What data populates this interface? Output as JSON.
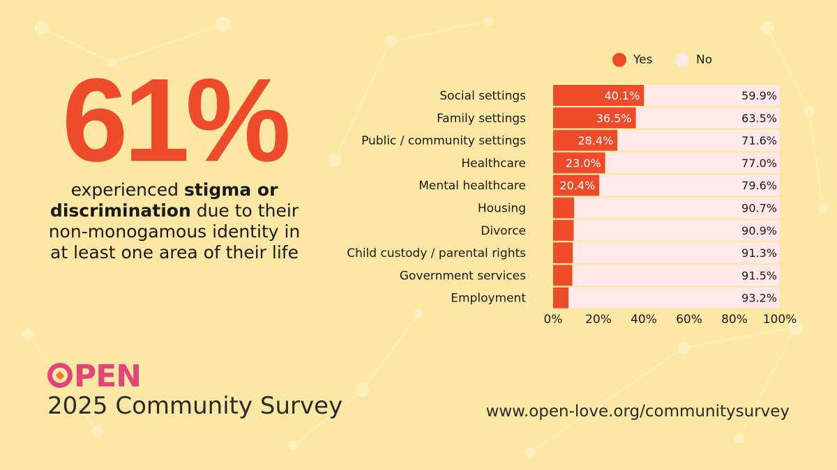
{
  "headline": {
    "stat": "61%",
    "desc_pre": "experienced ",
    "desc_bold": "stigma or discrimination",
    "desc_post": " due to their non-monogamous identity in at least one area of their life"
  },
  "brand": {
    "logo_text": "PEN",
    "survey_title": "2025 Community Survey",
    "url": "www.open-love.org/communitysurvey"
  },
  "colors": {
    "yes": "#EE4B2B",
    "no": "#FDE8E6",
    "background": "#FCE8A4",
    "brand": "#E0467A"
  },
  "chart_data": {
    "type": "bar",
    "orientation": "horizontal",
    "stacked": true,
    "categories": [
      "Social settings",
      "Family settings",
      "Public / community settings",
      "Healthcare",
      "Mental healthcare",
      "Housing",
      "Divorce",
      "Child custody / parental rights",
      "Government services",
      "Employment"
    ],
    "series": [
      {
        "name": "Yes",
        "values": [
          40.1,
          36.5,
          28.4,
          23.0,
          20.4,
          9.3,
          9.1,
          8.7,
          8.5,
          6.8
        ],
        "labels": [
          "40.1%",
          "36.5%",
          "28.4%",
          "23.0%",
          "20.4%",
          "",
          "",
          "",
          "",
          ""
        ]
      },
      {
        "name": "No",
        "values": [
          59.9,
          63.5,
          71.6,
          77.0,
          79.6,
          90.7,
          90.9,
          91.3,
          91.5,
          93.2
        ],
        "labels": [
          "59.9%",
          "63.5%",
          "71.6%",
          "77.0%",
          "79.6%",
          "90.7%",
          "90.9%",
          "91.3%",
          "91.5%",
          "93.2%"
        ]
      }
    ],
    "xlim": [
      0,
      100
    ],
    "xticks": [
      "0%",
      "20%",
      "40%",
      "60%",
      "80%",
      "100%"
    ],
    "legend": "top"
  }
}
